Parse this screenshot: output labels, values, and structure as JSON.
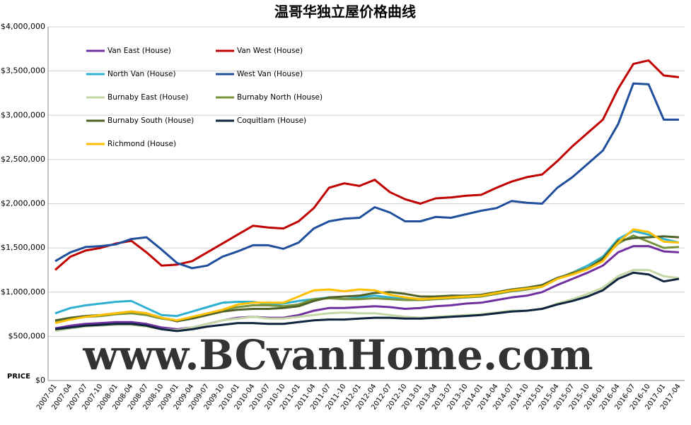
{
  "chart_data": {
    "type": "line",
    "title": "温哥华独立屋价格曲线",
    "y_label": "PRICE",
    "watermark": "www.BCvanHome.com",
    "categories": [
      "2007-01",
      "2007-04",
      "2007-07",
      "2007-10",
      "2008-01",
      "2008-04",
      "2008-07",
      "2008-10",
      "2009-01",
      "2009-04",
      "2009-07",
      "2009-10",
      "2010-01",
      "2010-04",
      "2010-07",
      "2010-10",
      "2011-01",
      "2011-04",
      "2011-07",
      "2011-10",
      "2012-01",
      "2012-04",
      "2012-07",
      "2012-10",
      "2013-01",
      "2013-04",
      "2013-07",
      "2013-10",
      "2014-01",
      "2014-04",
      "2014-07",
      "2014-10",
      "2015-01",
      "2015-04",
      "2015-07",
      "2015-10",
      "2016-01",
      "2016-04",
      "2016-07",
      "2016-10",
      "2017-01",
      "2017-04"
    ],
    "ylim": [
      0,
      4000000
    ],
    "yticks": [
      {
        "value": 0,
        "label": "$0"
      },
      {
        "value": 500000,
        "label": "$500,000"
      },
      {
        "value": 1000000,
        "label": "$1,000,000"
      },
      {
        "value": 1500000,
        "label": "$1,500,000"
      },
      {
        "value": 2000000,
        "label": "$2,000,000"
      },
      {
        "value": 2500000,
        "label": "$2,500,000"
      },
      {
        "value": 3000000,
        "label": "$3,000,000"
      },
      {
        "value": 3500000,
        "label": "$3,500,000"
      },
      {
        "value": 4000000,
        "label": "$4,000,000"
      }
    ],
    "grid": true,
    "series": [
      {
        "name": "Van East (House)",
        "color": "#7030a0",
        "values": [
          590000,
          620000,
          640000,
          650000,
          660000,
          660000,
          640000,
          600000,
          580000,
          600000,
          640000,
          680000,
          710000,
          720000,
          710000,
          710000,
          740000,
          790000,
          820000,
          820000,
          830000,
          840000,
          830000,
          810000,
          820000,
          840000,
          850000,
          870000,
          880000,
          910000,
          940000,
          960000,
          1000000,
          1080000,
          1150000,
          1220000,
          1300000,
          1450000,
          1520000,
          1520000,
          1460000,
          1450000
        ]
      },
      {
        "name": "Van West (House)",
        "color": "#c00000",
        "values": [
          1250000,
          1400000,
          1470000,
          1500000,
          1550000,
          1580000,
          1450000,
          1300000,
          1310000,
          1350000,
          1450000,
          1550000,
          1650000,
          1750000,
          1730000,
          1720000,
          1800000,
          1950000,
          2180000,
          2230000,
          2200000,
          2270000,
          2130000,
          2050000,
          2000000,
          2060000,
          2070000,
          2090000,
          2100000,
          2180000,
          2250000,
          2300000,
          2330000,
          2480000,
          2650000,
          2800000,
          2950000,
          3300000,
          3580000,
          3620000,
          3450000,
          3430000
        ]
      },
      {
        "name": "North Van (House)",
        "color": "#2eb0d0",
        "values": [
          760000,
          820000,
          850000,
          870000,
          890000,
          900000,
          820000,
          740000,
          730000,
          780000,
          830000,
          880000,
          890000,
          890000,
          860000,
          870000,
          900000,
          920000,
          940000,
          920000,
          940000,
          960000,
          940000,
          920000,
          910000,
          920000,
          930000,
          940000,
          960000,
          980000,
          1010000,
          1030000,
          1060000,
          1150000,
          1220000,
          1300000,
          1400000,
          1600000,
          1690000,
          1650000,
          1600000,
          1560000
        ]
      },
      {
        "name": "West Van (House)",
        "color": "#1f4e9c",
        "values": [
          1350000,
          1450000,
          1510000,
          1520000,
          1540000,
          1600000,
          1620000,
          1480000,
          1330000,
          1270000,
          1300000,
          1400000,
          1460000,
          1530000,
          1530000,
          1490000,
          1560000,
          1720000,
          1800000,
          1830000,
          1840000,
          1960000,
          1900000,
          1800000,
          1800000,
          1850000,
          1840000,
          1880000,
          1920000,
          1950000,
          2030000,
          2010000,
          2000000,
          2180000,
          2300000,
          2450000,
          2600000,
          2900000,
          3360000,
          3350000,
          2950000,
          2950000
        ]
      },
      {
        "name": "Burnaby East (House)",
        "color": "#c4d7a4",
        "values": [
          560000,
          590000,
          610000,
          620000,
          630000,
          630000,
          610000,
          580000,
          570000,
          600000,
          640000,
          680000,
          700000,
          720000,
          700000,
          700000,
          720000,
          740000,
          760000,
          770000,
          760000,
          760000,
          740000,
          720000,
          710000,
          720000,
          730000,
          740000,
          750000,
          770000,
          790000,
          790000,
          810000,
          870000,
          920000,
          980000,
          1050000,
          1180000,
          1250000,
          1250000,
          1180000,
          1160000
        ]
      },
      {
        "name": "Burnaby North (House)",
        "color": "#77933c",
        "values": [
          660000,
          700000,
          720000,
          730000,
          750000,
          760000,
          740000,
          700000,
          680000,
          710000,
          750000,
          800000,
          830000,
          850000,
          850000,
          840000,
          860000,
          920000,
          930000,
          920000,
          920000,
          930000,
          920000,
          910000,
          910000,
          920000,
          930000,
          940000,
          950000,
          980000,
          1010000,
          1030000,
          1060000,
          1150000,
          1220000,
          1270000,
          1380000,
          1550000,
          1640000,
          1570000,
          1500000,
          1510000
        ]
      },
      {
        "name": "Burnaby South (House)",
        "color": "#4f6228",
        "values": [
          680000,
          710000,
          730000,
          740000,
          760000,
          780000,
          760000,
          710000,
          670000,
          700000,
          740000,
          780000,
          800000,
          810000,
          810000,
          820000,
          840000,
          900000,
          940000,
          950000,
          960000,
          990000,
          1000000,
          980000,
          950000,
          950000,
          960000,
          960000,
          970000,
          1000000,
          1030000,
          1050000,
          1080000,
          1160000,
          1210000,
          1260000,
          1380000,
          1580000,
          1610000,
          1620000,
          1630000,
          1620000
        ]
      },
      {
        "name": "Coquitlam (House)",
        "color": "#0f253f",
        "values": [
          580000,
          600000,
          620000,
          630000,
          640000,
          640000,
          620000,
          580000,
          560000,
          580000,
          610000,
          630000,
          650000,
          650000,
          640000,
          640000,
          660000,
          680000,
          690000,
          690000,
          700000,
          710000,
          710000,
          700000,
          700000,
          710000,
          720000,
          730000,
          740000,
          760000,
          780000,
          790000,
          810000,
          860000,
          900000,
          950000,
          1020000,
          1150000,
          1220000,
          1200000,
          1120000,
          1150000
        ]
      },
      {
        "name": "Richmond (House)",
        "color": "#ffc000",
        "values": [
          650000,
          690000,
          720000,
          740000,
          760000,
          780000,
          760000,
          710000,
          680000,
          720000,
          760000,
          800000,
          860000,
          880000,
          880000,
          880000,
          950000,
          1020000,
          1030000,
          1010000,
          1030000,
          1020000,
          970000,
          940000,
          920000,
          930000,
          940000,
          950000,
          960000,
          990000,
          1020000,
          1040000,
          1060000,
          1150000,
          1200000,
          1260000,
          1350000,
          1560000,
          1710000,
          1680000,
          1570000,
          1560000
        ]
      }
    ]
  }
}
